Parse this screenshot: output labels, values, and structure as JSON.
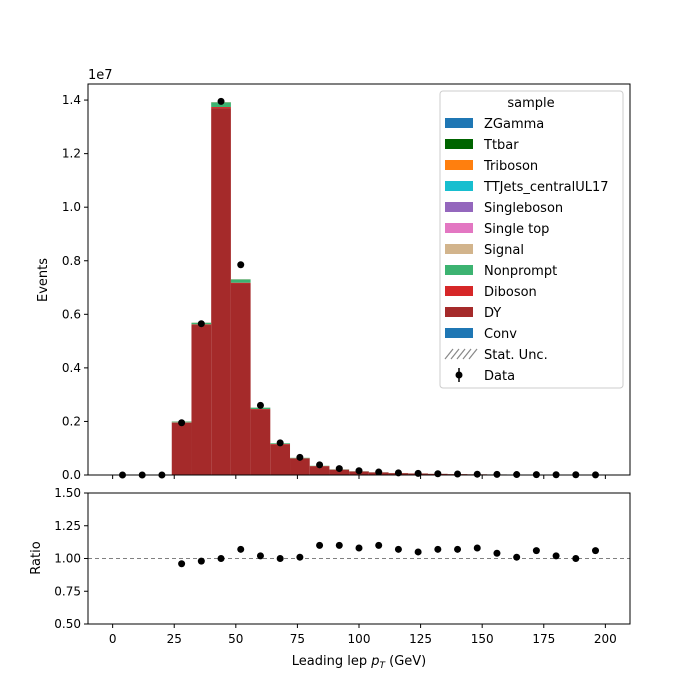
{
  "chart_data": {
    "type": "bar",
    "stacked": true,
    "top_panel": {
      "ylabel": "Events",
      "y_scale_label": "1e7",
      "xlim": [
        -10,
        210
      ],
      "ylim": [
        0,
        14600000
      ],
      "yticks": [
        "0.0",
        "0.2",
        "0.4",
        "0.6",
        "0.8",
        "1.0",
        "1.2",
        "1.4"
      ],
      "ytick_values": [
        0,
        2000000,
        4000000,
        6000000,
        8000000,
        10000000,
        12000000,
        14000000
      ],
      "xticks": [
        0,
        25,
        50,
        75,
        100,
        125,
        150,
        175,
        200
      ],
      "bin_edges": [
        24,
        32,
        40,
        48,
        56,
        64,
        72,
        80,
        88,
        96,
        104,
        112,
        120,
        128,
        136,
        144,
        152,
        160,
        168,
        176,
        184,
        192,
        200
      ],
      "mc_stack": [
        {
          "name": "DY",
          "color": "#a52a2a",
          "values": [
            1950000,
            5600000,
            13700000,
            7150000,
            2450000,
            1150000,
            620000,
            330000,
            200000,
            130000,
            95000,
            70000,
            55000,
            42000,
            33000,
            26000,
            20000,
            16000,
            13000,
            10000,
            8000,
            6000
          ]
        },
        {
          "name": "Diboson",
          "color": "#d62728",
          "values": [
            15000,
            25000,
            40000,
            30000,
            15000,
            9000,
            6000,
            4000,
            3000,
            2500,
            2000,
            1500,
            1200,
            1000,
            800,
            600,
            500,
            400,
            300,
            250,
            200,
            150
          ]
        },
        {
          "name": "Nonprompt",
          "color": "#3cb371",
          "values": [
            30000,
            60000,
            170000,
            120000,
            50000,
            25000,
            15000,
            10000,
            7000,
            5000,
            4000,
            3000,
            2500,
            2000,
            1500,
            1200,
            1000,
            800,
            600,
            500,
            400,
            300
          ]
        },
        {
          "name": "Signal",
          "color": "#d2b48c",
          "values": [
            5000,
            8000,
            10000,
            8000,
            4000,
            3000,
            2000,
            1500,
            1200,
            1000,
            800,
            600,
            500,
            400,
            300,
            250,
            200,
            150,
            120,
            100,
            80,
            60
          ]
        },
        {
          "name": "Ttbar",
          "color": "#006400",
          "values": [
            1000,
            2000,
            3000,
            2000,
            1500,
            1200,
            1000,
            800,
            600,
            500,
            400,
            300,
            250,
            200,
            150,
            120,
            100,
            80,
            60,
            50,
            40,
            30
          ]
        }
      ],
      "data_points": {
        "x": [
          4,
          12,
          20,
          28,
          36,
          44,
          52,
          60,
          68,
          76,
          84,
          92,
          100,
          108,
          116,
          124,
          132,
          140,
          148,
          156,
          164,
          172,
          180,
          188,
          196
        ],
        "y": [
          0,
          0,
          0,
          1950000,
          5650000,
          13950000,
          7850000,
          2600000,
          1200000,
          660000,
          380000,
          240000,
          160000,
          110000,
          80000,
          60000,
          48000,
          38000,
          30000,
          22000,
          17000,
          14000,
          10000,
          8000,
          6000
        ]
      }
    },
    "legend": {
      "title": "sample",
      "placement": "upper-right",
      "entries": [
        {
          "label": "ZGamma",
          "color": "#1f77b4",
          "kind": "patch"
        },
        {
          "label": "Ttbar",
          "color": "#006400",
          "kind": "patch"
        },
        {
          "label": "Triboson",
          "color": "#ff7f0e",
          "kind": "patch"
        },
        {
          "label": "TTJets_centralUL17",
          "color": "#17becf",
          "kind": "patch"
        },
        {
          "label": "Singleboson",
          "color": "#9467bd",
          "kind": "patch"
        },
        {
          "label": "Single top",
          "color": "#e377c2",
          "kind": "patch"
        },
        {
          "label": "Signal",
          "color": "#d2b48c",
          "kind": "patch"
        },
        {
          "label": "Nonprompt",
          "color": "#3cb371",
          "kind": "patch"
        },
        {
          "label": "Diboson",
          "color": "#d62728",
          "kind": "patch"
        },
        {
          "label": "DY",
          "color": "#a52a2a",
          "kind": "patch"
        },
        {
          "label": "Conv",
          "color": "#1f77b4",
          "kind": "patch"
        },
        {
          "label": "Stat. Unc.",
          "color": "#888888",
          "kind": "hatch"
        },
        {
          "label": "Data",
          "color": "#000000",
          "kind": "errorbar"
        }
      ]
    },
    "ratio_panel": {
      "ylabel": "Ratio",
      "ylim": [
        0.5,
        1.5
      ],
      "yticks": [
        "0.50",
        "0.75",
        "1.00",
        "1.25",
        "1.50"
      ],
      "ytick_values": [
        0.5,
        0.75,
        1.0,
        1.25,
        1.5
      ],
      "reference_line": 1.0,
      "xlabel_main": "Leading lep ",
      "xlabel_sym": "p",
      "xlabel_sub": "T",
      "xlabel_unit": " (GeV)",
      "points": {
        "x": [
          28,
          36,
          44,
          52,
          60,
          68,
          76,
          84,
          92,
          100,
          108,
          116,
          124,
          132,
          140,
          148,
          156,
          164,
          172,
          180,
          188,
          196
        ],
        "y": [
          0.96,
          0.98,
          1.0,
          1.07,
          1.02,
          1.0,
          1.01,
          1.1,
          1.1,
          1.08,
          1.1,
          1.07,
          1.05,
          1.07,
          1.07,
          1.08,
          1.04,
          1.01,
          1.06,
          1.02,
          1.0,
          1.06
        ]
      }
    }
  }
}
